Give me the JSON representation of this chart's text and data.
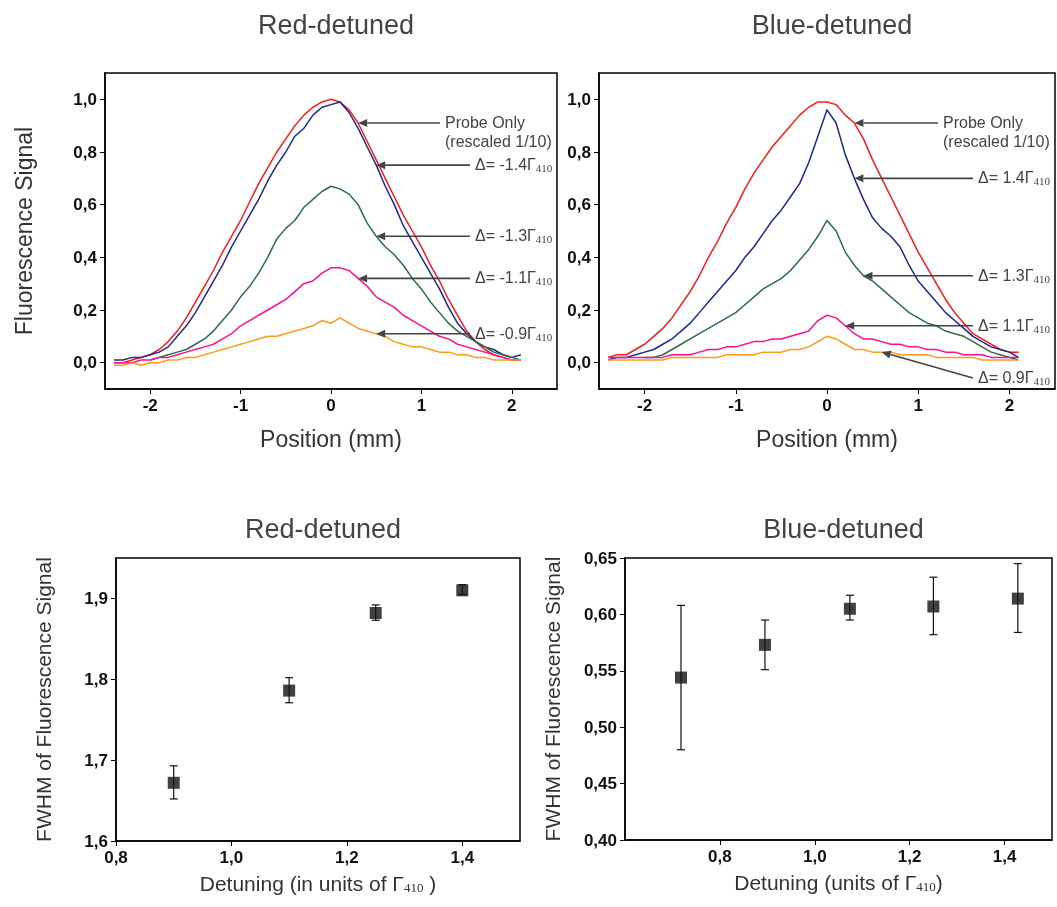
{
  "chart_data": [
    {
      "type": "line",
      "title": "Red-detuned",
      "xlabel": "Position (mm)",
      "ylabel": "Fluorescence Signal",
      "marker": "none",
      "xlim": [
        -2.5,
        2.5
      ],
      "ylim": [
        -0.1,
        1.1
      ],
      "xticks": [
        -2,
        -1,
        0,
        1,
        2
      ],
      "yticks": [
        {
          "value": 0,
          "label": "0,0"
        },
        {
          "value": 0.2,
          "label": "0,2"
        },
        {
          "value": 0.4,
          "label": "0,4"
        },
        {
          "value": 0.6,
          "label": "0,6"
        },
        {
          "value": 0.8,
          "label": "0,8"
        },
        {
          "value": 1.0,
          "label": "1,0"
        }
      ],
      "x": [
        -2.4,
        -2.3,
        -2.2,
        -2.1,
        -2.0,
        -1.9,
        -1.8,
        -1.7,
        -1.6,
        -1.5,
        -1.4,
        -1.3,
        -1.2,
        -1.1,
        -1.0,
        -0.9,
        -0.8,
        -0.7,
        -0.6,
        -0.5,
        -0.4,
        -0.3,
        -0.2,
        -0.1,
        0,
        0.1,
        0.2,
        0.3,
        0.4,
        0.5,
        0.6,
        0.7,
        0.8,
        0.9,
        1.0,
        1.1,
        1.2,
        1.3,
        1.4,
        1.5,
        1.6,
        1.7,
        1.8,
        1.9,
        2.0,
        2.1
      ],
      "series": [
        {
          "color": "#ff1a1a",
          "values": [
            0.0,
            0.0,
            0.01,
            0.02,
            0.03,
            0.05,
            0.08,
            0.12,
            0.17,
            0.23,
            0.29,
            0.35,
            0.42,
            0.48,
            0.54,
            0.61,
            0.68,
            0.74,
            0.8,
            0.85,
            0.9,
            0.94,
            0.97,
            0.99,
            1.0,
            0.99,
            0.96,
            0.91,
            0.84,
            0.77,
            0.7,
            0.63,
            0.56,
            0.5,
            0.44,
            0.37,
            0.31,
            0.24,
            0.18,
            0.12,
            0.08,
            0.05,
            0.03,
            0.02,
            0.01,
            0.01
          ]
        },
        {
          "color": "#1c2a8c",
          "values": [
            0.01,
            0.01,
            0.02,
            0.02,
            0.03,
            0.04,
            0.06,
            0.1,
            0.14,
            0.19,
            0.25,
            0.31,
            0.37,
            0.44,
            0.5,
            0.56,
            0.62,
            0.69,
            0.75,
            0.8,
            0.86,
            0.89,
            0.94,
            0.97,
            0.98,
            0.99,
            0.95,
            0.89,
            0.82,
            0.75,
            0.67,
            0.6,
            0.52,
            0.46,
            0.4,
            0.34,
            0.28,
            0.21,
            0.15,
            0.11,
            0.08,
            0.06,
            0.05,
            0.03,
            0.02,
            0.03
          ]
        },
        {
          "color": "#2e6b4e",
          "values": [
            null,
            null,
            null,
            null,
            0.01,
            0.02,
            0.03,
            0.04,
            0.05,
            0.07,
            0.09,
            0.12,
            0.16,
            0.2,
            0.25,
            0.29,
            0.34,
            0.4,
            0.47,
            0.51,
            0.54,
            0.59,
            0.62,
            0.65,
            0.67,
            0.66,
            0.64,
            0.6,
            0.53,
            0.48,
            0.44,
            0.41,
            0.37,
            0.32,
            0.28,
            0.23,
            0.19,
            0.15,
            0.12,
            0.1,
            0.08,
            0.06,
            0.04,
            0.03,
            0.02,
            0.01
          ]
        },
        {
          "color": "#ff0f8f",
          "values": [
            0.0,
            0.0,
            0.0,
            0.01,
            0.01,
            0.02,
            0.02,
            0.03,
            0.04,
            0.05,
            0.06,
            0.07,
            0.09,
            0.11,
            0.14,
            0.16,
            0.18,
            0.2,
            0.22,
            0.24,
            0.27,
            0.3,
            0.31,
            0.34,
            0.36,
            0.36,
            0.35,
            0.32,
            0.29,
            0.25,
            0.23,
            0.21,
            0.18,
            0.16,
            0.14,
            0.12,
            0.1,
            0.09,
            0.07,
            0.06,
            0.05,
            0.04,
            0.03,
            0.02,
            0.01,
            0.01
          ]
        },
        {
          "color": "#ff9a1a",
          "values": [
            -0.01,
            -0.01,
            0.0,
            -0.01,
            0.0,
            0.0,
            0.01,
            0.01,
            0.02,
            0.02,
            0.03,
            0.04,
            0.05,
            0.06,
            0.07,
            0.08,
            0.09,
            0.1,
            0.1,
            0.11,
            0.12,
            0.13,
            0.14,
            0.16,
            0.15,
            0.17,
            0.15,
            0.13,
            0.12,
            0.11,
            0.1,
            0.08,
            0.07,
            0.06,
            0.06,
            0.05,
            0.04,
            0.04,
            0.03,
            0.03,
            0.02,
            0.02,
            0.01,
            0.01,
            0.01,
            0.01
          ]
        }
      ],
      "annotations": [
        {
          "text": "Probe Only\n(rescaled 1/10)",
          "x": 0.3,
          "y": 0.91
        },
        {
          "text": "Δ= -1.4Γ$_{410}$",
          "x": 0.5,
          "y": 0.75
        },
        {
          "text": "Δ= -1.3Γ$_{410}$",
          "x": 0.5,
          "y": 0.48
        },
        {
          "text": "Δ= -1.1Γ$_{410}$",
          "x": 0.3,
          "y": 0.32
        },
        {
          "text": "Δ= -0.9Γ$_{410}$",
          "x": 0.5,
          "y": 0.11
        }
      ]
    },
    {
      "type": "line",
      "title": "Blue-detuned",
      "xlabel": "Position (mm)",
      "marker": "none",
      "xlim": [
        -2.5,
        2.5
      ],
      "ylim": [
        -0.1,
        1.1
      ],
      "xticks": [
        -2,
        -1,
        0,
        1,
        2
      ],
      "yticks": [
        {
          "value": 0,
          "label": "0,0"
        },
        {
          "value": 0.2,
          "label": "0,2"
        },
        {
          "value": 0.4,
          "label": "0,4"
        },
        {
          "value": 0.6,
          "label": "0,6"
        },
        {
          "value": 0.8,
          "label": "0,8"
        },
        {
          "value": 1.0,
          "label": "1,0"
        }
      ],
      "x": [
        -2.4,
        -2.3,
        -2.2,
        -2.1,
        -2.0,
        -1.9,
        -1.8,
        -1.7,
        -1.6,
        -1.5,
        -1.4,
        -1.3,
        -1.2,
        -1.1,
        -1.0,
        -0.9,
        -0.8,
        -0.7,
        -0.6,
        -0.5,
        -0.4,
        -0.3,
        -0.2,
        -0.1,
        0,
        0.1,
        0.2,
        0.3,
        0.4,
        0.5,
        0.6,
        0.7,
        0.8,
        0.9,
        1.0,
        1.1,
        1.2,
        1.3,
        1.4,
        1.5,
        1.6,
        1.7,
        1.8,
        1.9,
        2.0,
        2.1
      ],
      "series": [
        {
          "color": "#ff1a1a",
          "values": [
            0.02,
            0.03,
            0.03,
            0.05,
            0.07,
            0.1,
            0.13,
            0.17,
            0.22,
            0.27,
            0.33,
            0.4,
            0.46,
            0.53,
            0.59,
            0.66,
            0.72,
            0.77,
            0.82,
            0.86,
            0.9,
            0.94,
            0.97,
            0.99,
            0.99,
            0.98,
            0.94,
            0.91,
            0.85,
            0.77,
            0.7,
            0.63,
            0.56,
            0.49,
            0.42,
            0.36,
            0.3,
            0.24,
            0.19,
            0.15,
            0.11,
            0.09,
            0.07,
            0.05,
            0.04,
            0.04
          ]
        },
        {
          "color": "#1c2a8c",
          "values": [
            0.01,
            0.02,
            0.02,
            0.03,
            0.04,
            0.05,
            0.07,
            0.09,
            0.12,
            0.15,
            0.19,
            0.23,
            0.27,
            0.31,
            0.35,
            0.4,
            0.44,
            0.49,
            0.54,
            0.58,
            0.63,
            0.68,
            0.76,
            0.86,
            0.96,
            0.91,
            0.79,
            0.7,
            0.62,
            0.55,
            0.51,
            0.48,
            0.44,
            0.37,
            0.31,
            0.27,
            0.23,
            0.19,
            0.16,
            0.13,
            0.1,
            0.08,
            0.06,
            0.05,
            0.04,
            0.02
          ]
        },
        {
          "color": "#2e6b4e",
          "values": [
            null,
            null,
            null,
            null,
            0.02,
            0.02,
            0.03,
            0.05,
            0.07,
            0.09,
            0.11,
            0.13,
            0.15,
            0.17,
            0.19,
            0.22,
            0.25,
            0.28,
            0.3,
            0.32,
            0.35,
            0.39,
            0.43,
            0.48,
            0.54,
            0.5,
            0.42,
            0.37,
            0.33,
            0.31,
            0.28,
            0.25,
            0.22,
            0.19,
            0.17,
            0.15,
            0.14,
            0.12,
            0.11,
            0.1,
            0.08,
            0.06,
            0.04,
            0.03,
            0.02,
            0.01
          ]
        },
        {
          "color": "#ff0f8f",
          "values": [
            0.02,
            0.02,
            0.02,
            0.02,
            0.02,
            0.02,
            0.02,
            0.03,
            0.03,
            0.03,
            0.04,
            0.05,
            0.05,
            0.06,
            0.06,
            0.07,
            0.08,
            0.08,
            0.09,
            0.09,
            0.1,
            0.11,
            0.12,
            0.16,
            0.18,
            0.17,
            0.14,
            0.11,
            0.09,
            0.09,
            0.08,
            0.07,
            0.07,
            0.06,
            0.06,
            0.05,
            0.05,
            0.04,
            0.04,
            0.03,
            0.03,
            0.03,
            0.02,
            0.02,
            0.02,
            0.02
          ]
        },
        {
          "color": "#ff9a1a",
          "values": [
            0.01,
            0.01,
            0.01,
            0.01,
            0.01,
            0.01,
            0.01,
            0.02,
            0.02,
            0.02,
            0.02,
            0.02,
            0.02,
            0.03,
            0.03,
            0.03,
            0.03,
            0.04,
            0.04,
            0.04,
            0.05,
            0.05,
            0.06,
            0.08,
            0.1,
            0.09,
            0.07,
            0.05,
            0.05,
            0.04,
            0.04,
            0.04,
            0.03,
            0.03,
            0.03,
            0.03,
            0.02,
            0.02,
            0.02,
            0.02,
            0.02,
            0.01,
            0.01,
            0.01,
            0.01,
            0.01
          ]
        }
      ],
      "annotations": [
        {
          "text": "Probe Only\n(rescaled 1/10)",
          "x": 0.3,
          "y": 0.91
        },
        {
          "text": "Δ= 1.4Γ$_{410}$",
          "x": 0.3,
          "y": 0.7
        },
        {
          "text": "Δ= 1.3Γ$_{410}$",
          "x": 0.4,
          "y": 0.33
        },
        {
          "text": "Δ= 1.1Γ$_{410}$",
          "x": 0.2,
          "y": 0.14
        },
        {
          "text": "Δ= 0.9Γ$_{410}$",
          "x": 0.6,
          "y": 0.04
        }
      ]
    },
    {
      "type": "scatter",
      "title": "Red-detuned",
      "xlabel": "Detuning (in units of Γ$_{410}$ )",
      "ylabel": "FWHM of Fluorescence Signal",
      "marker": "square",
      "color": "#111111",
      "xlim": [
        0.8,
        1.5
      ],
      "ylim": [
        1.6,
        1.95
      ],
      "xticks": [
        {
          "value": 0.8,
          "label": "0,8"
        },
        {
          "value": 1.0,
          "label": "1,0"
        },
        {
          "value": 1.2,
          "label": "1,2"
        },
        {
          "value": 1.4,
          "label": "1,4"
        }
      ],
      "yticks": [
        {
          "value": 1.6,
          "label": "1,6"
        },
        {
          "value": 1.7,
          "label": "1,7"
        },
        {
          "value": 1.8,
          "label": "1,8"
        },
        {
          "value": 1.9,
          "label": "1,9"
        }
      ],
      "x": [
        0.9,
        1.1,
        1.25,
        1.4
      ],
      "values": [
        1.672,
        1.786,
        1.882,
        1.91
      ],
      "errors": [
        [
          1.652,
          1.693
        ],
        [
          1.771,
          1.802
        ],
        [
          1.873,
          1.892
        ],
        [
          1.905,
          1.917
        ]
      ]
    },
    {
      "type": "scatter",
      "title": "Blue-detuned",
      "xlabel": "Detuning (units of Γ$_{410}$)",
      "ylabel": "FWHM of Fluorescence Signal",
      "marker": "square",
      "color": "#111111",
      "xlim": [
        0.6,
        1.5
      ],
      "ylim": [
        0.4,
        0.65
      ],
      "xticks": [
        {
          "value": 0.8,
          "label": "0,8"
        },
        {
          "value": 1.0,
          "label": "1,0"
        },
        {
          "value": 1.2,
          "label": "1,2"
        },
        {
          "value": 1.4,
          "label": "1,4"
        }
      ],
      "yticks": [
        {
          "value": 0.4,
          "label": "0,40"
        },
        {
          "value": 0.45,
          "label": "0,45"
        },
        {
          "value": 0.5,
          "label": "0,50"
        },
        {
          "value": 0.55,
          "label": "0,55"
        },
        {
          "value": 0.6,
          "label": "0,60"
        },
        {
          "value": 0.65,
          "label": "0,65"
        }
      ],
      "x": [
        0.718,
        0.895,
        1.074,
        1.25,
        1.428
      ],
      "values": [
        0.544,
        0.573,
        0.605,
        0.607,
        0.614
      ],
      "errors": [
        [
          0.48,
          0.608
        ],
        [
          0.551,
          0.595
        ],
        [
          0.595,
          0.617
        ],
        [
          0.582,
          0.633
        ],
        [
          0.584,
          0.645
        ]
      ]
    }
  ]
}
